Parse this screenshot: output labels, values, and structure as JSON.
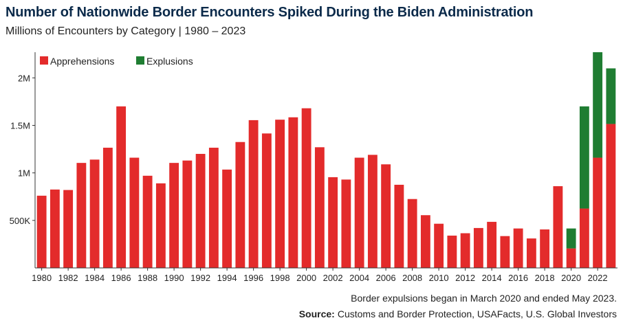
{
  "header": {
    "title": "Number of Nationwide Border Encounters Spiked During the Biden Administration",
    "subtitle": "Millions of Encounters by Category | 1980 – 2023"
  },
  "footer": {
    "note": "Border expulsions began in March 2020 and ended May 2023.",
    "source_label": "Source:",
    "source_text": "Customs and Border Protection, USAFacts, U.S. Global Investors"
  },
  "colors": {
    "apprehensions": "#e32b2b",
    "expulsions": "#1f7d32",
    "axis": "#333333"
  },
  "chart_data": {
    "type": "bar",
    "stacked": true,
    "title": "Number of Nationwide Border Encounters Spiked During the Biden Administration",
    "subtitle": "Millions of Encounters by Category | 1980 – 2023",
    "xlabel": "",
    "ylabel": "",
    "ylim": [
      0,
      2270000
    ],
    "yticks": [
      500000,
      1000000,
      1500000,
      2000000
    ],
    "ytick_labels": [
      "500K",
      "1M",
      "1.5M",
      "2M"
    ],
    "xtick_labels": [
      "1980",
      "1982",
      "1984",
      "1986",
      "1988",
      "1990",
      "1992",
      "1994",
      "1996",
      "1998",
      "2000",
      "2002",
      "2004",
      "2006",
      "2008",
      "2010",
      "2012",
      "2014",
      "2016",
      "2018",
      "2020",
      "2022"
    ],
    "legend_position": "top-left",
    "grid": false,
    "categories": [
      1980,
      1981,
      1982,
      1983,
      1984,
      1985,
      1986,
      1987,
      1988,
      1989,
      1990,
      1991,
      1992,
      1993,
      1994,
      1995,
      1996,
      1997,
      1998,
      1999,
      2000,
      2001,
      2002,
      2003,
      2004,
      2005,
      2006,
      2007,
      2008,
      2009,
      2010,
      2011,
      2012,
      2013,
      2014,
      2015,
      2016,
      2017,
      2018,
      2019,
      2020,
      2021,
      2022,
      2023
    ],
    "series": [
      {
        "name": "Apprehensions",
        "color": "#e32b2b",
        "values": [
          760000,
          825000,
          820000,
          1105000,
          1140000,
          1265000,
          1700000,
          1160000,
          970000,
          890000,
          1105000,
          1130000,
          1200000,
          1265000,
          1035000,
          1325000,
          1555000,
          1415000,
          1560000,
          1585000,
          1680000,
          1270000,
          955000,
          930000,
          1160000,
          1190000,
          1090000,
          875000,
          725000,
          555000,
          465000,
          340000,
          365000,
          420000,
          485000,
          335000,
          415000,
          310000,
          405000,
          860000,
          205000,
          625000,
          1160000,
          1515000
        ]
      },
      {
        "name": "Explusions",
        "color": "#1f7d32",
        "values": [
          0,
          0,
          0,
          0,
          0,
          0,
          0,
          0,
          0,
          0,
          0,
          0,
          0,
          0,
          0,
          0,
          0,
          0,
          0,
          0,
          0,
          0,
          0,
          0,
          0,
          0,
          0,
          0,
          0,
          0,
          0,
          0,
          0,
          0,
          0,
          0,
          0,
          0,
          0,
          0,
          210000,
          1075000,
          1110000,
          585000
        ]
      }
    ]
  }
}
